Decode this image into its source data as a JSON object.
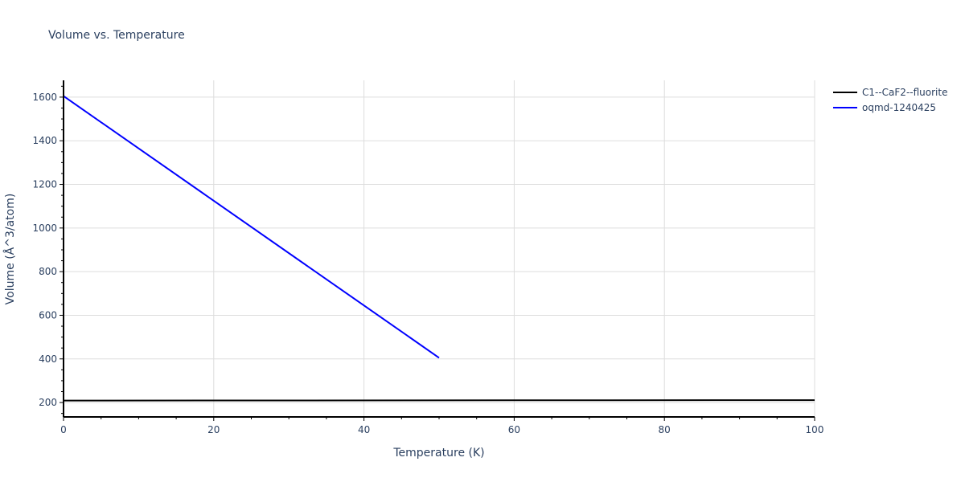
{
  "chart_data": {
    "type": "line",
    "title": "Volume vs. Temperature",
    "xlabel": "Temperature (K)",
    "ylabel": "Volume (Å^3/atom)",
    "xlim": [
      0,
      100
    ],
    "ylim": [
      134,
      1677
    ],
    "x_ticks": [
      0,
      20,
      40,
      60,
      80,
      100
    ],
    "y_ticks": [
      200,
      400,
      600,
      800,
      1000,
      1200,
      1400,
      1600
    ],
    "grid": true,
    "legend_position": "top-right-outside",
    "series": [
      {
        "name": "C1--CaF2--fluorite",
        "color": "#000000",
        "x": [
          0,
          100
        ],
        "y": [
          209,
          211
        ]
      },
      {
        "name": "oqmd-1240425",
        "color": "#0000ff",
        "x": [
          0,
          50
        ],
        "y": [
          1605,
          405
        ]
      }
    ]
  },
  "legend": {
    "items": [
      {
        "label": "C1--CaF2--fluorite",
        "color": "#000000"
      },
      {
        "label": "oqmd-1240425",
        "color": "#0000ff"
      }
    ]
  },
  "colors": {
    "text": "#2a3f5f",
    "grid": "#dddddd",
    "axis": "#000000"
  }
}
